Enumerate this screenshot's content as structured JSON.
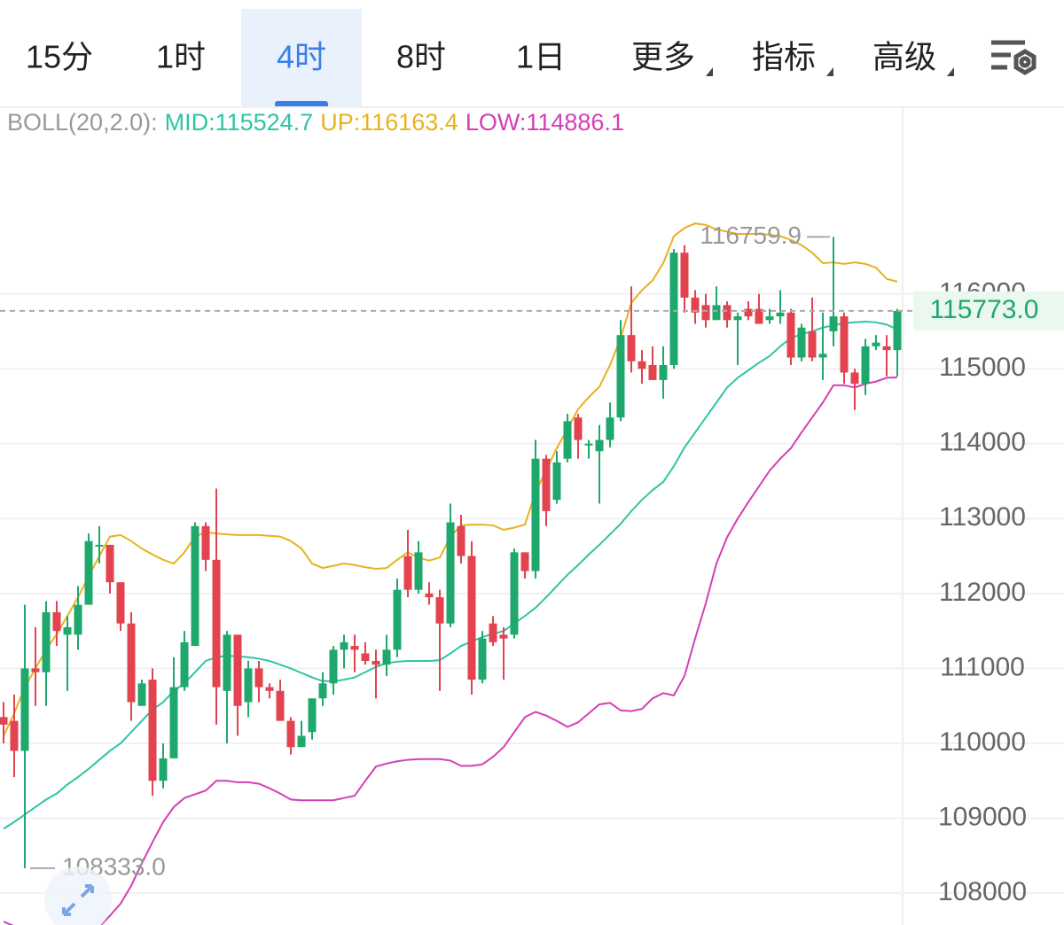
{
  "ui": {
    "tabs": [
      "15分",
      "1时",
      "4时",
      "8时",
      "1日",
      "更多",
      "指标",
      "高级"
    ],
    "active_tab": 2
  },
  "chart_data": {
    "type": "candlestick",
    "indicator_label": "BOLL(20,2.0):",
    "open": [
      110350,
      110300,
      109900,
      111000,
      110950,
      111750,
      111450,
      111450,
      111850,
      112650,
      112650,
      112150,
      111600,
      110500,
      110850,
      109500,
      109800,
      110750,
      111300,
      112900,
      112450,
      110700,
      111450,
      110550,
      111000,
      110750,
      110700,
      110300,
      109950,
      110150,
      110600,
      110800,
      111250,
      111300,
      111200,
      111100,
      111050,
      111250,
      112500,
      112050,
      112000,
      111950,
      111600,
      112900,
      112500,
      110850,
      111600,
      111450,
      111450,
      112550,
      112300,
      113800,
      113250,
      113800,
      114350,
      114000,
      113900,
      114050,
      114350,
      115450,
      115100,
      115050,
      114850,
      115050,
      116550,
      115950,
      115850,
      115650,
      115850,
      115650,
      115800,
      115800,
      115650,
      115700,
      115750,
      115150,
      115500,
      115150,
      115500,
      115700,
      114950,
      114800,
      115300,
      115300,
      115250
    ],
    "high": [
      110550,
      110650,
      111850,
      111550,
      111900,
      111900,
      111700,
      112100,
      112800,
      112900,
      112650,
      112150,
      111750,
      110850,
      111000,
      110000,
      111150,
      111500,
      112950,
      112950,
      113400,
      111500,
      111450,
      111100,
      111100,
      110800,
      110850,
      110350,
      110300,
      110600,
      110950,
      111300,
      111450,
      111450,
      111350,
      111250,
      111450,
      112200,
      112850,
      112700,
      112150,
      112050,
      113200,
      113050,
      112700,
      111500,
      111700,
      111550,
      112600,
      112550,
      114050,
      113850,
      113900,
      114400,
      114400,
      114050,
      114250,
      114550,
      115650,
      116100,
      115250,
      115300,
      115300,
      116600,
      116650,
      116050,
      116000,
      116100,
      115900,
      115750,
      115900,
      116000,
      115800,
      116050,
      115800,
      115600,
      115950,
      115750,
      116759.9,
      115750,
      115000,
      115400,
      115450,
      115450,
      115800
    ],
    "low": [
      110000,
      109550,
      108333,
      110500,
      110500,
      111300,
      110700,
      111250,
      111850,
      112400,
      112000,
      111500,
      110300,
      110500,
      109300,
      109400,
      109800,
      110700,
      111300,
      112300,
      110250,
      110000,
      110100,
      110350,
      110550,
      110600,
      110300,
      109850,
      109950,
      110050,
      110500,
      110650,
      111000,
      110950,
      111050,
      110600,
      110900,
      111150,
      111950,
      112000,
      111850,
      110700,
      111550,
      112400,
      110650,
      110800,
      111300,
      110850,
      111400,
      112200,
      112200,
      112900,
      113200,
      113750,
      113800,
      113800,
      113200,
      113950,
      114300,
      114950,
      114800,
      114850,
      114600,
      115000,
      115750,
      115600,
      115550,
      115650,
      115550,
      115050,
      115650,
      115600,
      115600,
      115600,
      115050,
      115100,
      115100,
      114850,
      115300,
      114800,
      114450,
      114650,
      115250,
      114900,
      114900
    ],
    "close": [
      110250,
      109900,
      111000,
      110950,
      111750,
      111500,
      111550,
      111850,
      112700,
      112650,
      112150,
      111600,
      110550,
      110800,
      109500,
      109800,
      110750,
      111350,
      112900,
      112450,
      110750,
      111450,
      110500,
      111000,
      110750,
      110700,
      110300,
      109950,
      110100,
      110600,
      110800,
      111250,
      111350,
      111250,
      111100,
      111050,
      111250,
      112050,
      112050,
      112550,
      111950,
      111600,
      112950,
      112500,
      110850,
      111400,
      111350,
      111400,
      112550,
      112300,
      113800,
      113100,
      113750,
      114300,
      114050,
      114000,
      114050,
      114350,
      115450,
      115100,
      115000,
      114850,
      115050,
      116550,
      115950,
      115750,
      115650,
      115850,
      115650,
      115700,
      115700,
      115600,
      115700,
      115750,
      115150,
      115550,
      115150,
      115200,
      115700,
      114950,
      114800,
      115300,
      115350,
      115250,
      115773
    ],
    "up_color": "#1fa86c",
    "down_color": "#e2434f",
    "series": [
      {
        "name": "MID",
        "legend": "MID:115524.7",
        "color": "#2fc4a6",
        "values": [
          108860,
          108950,
          109050,
          109150,
          109250,
          109330,
          109450,
          109550,
          109660,
          109780,
          109900,
          110000,
          110150,
          110300,
          110450,
          110550,
          110700,
          110800,
          110950,
          111100,
          111150,
          111170,
          111160,
          111150,
          111130,
          111100,
          111050,
          111000,
          110940,
          110880,
          110830,
          110830,
          110850,
          110880,
          110950,
          111020,
          111070,
          111090,
          111100,
          111100,
          111100,
          111110,
          111200,
          111300,
          111360,
          111420,
          111460,
          111500,
          111600,
          111700,
          111810,
          111950,
          112100,
          112250,
          112380,
          112520,
          112650,
          112790,
          112930,
          113100,
          113250,
          113380,
          113490,
          113700,
          113950,
          114150,
          114350,
          114550,
          114750,
          114880,
          114980,
          115080,
          115170,
          115300,
          115410,
          115460,
          115500,
          115550,
          115580,
          115610,
          115620,
          115630,
          115620,
          115590,
          115524.7
        ]
      },
      {
        "name": "UP",
        "legend": "UP:116163.4",
        "color": "#e8b21e",
        "values": [
          110100,
          110400,
          110750,
          111000,
          111250,
          111460,
          111700,
          111950,
          112230,
          112500,
          112760,
          112780,
          112700,
          112600,
          112520,
          112450,
          112400,
          112550,
          112760,
          112820,
          112800,
          112790,
          112780,
          112780,
          112780,
          112770,
          112760,
          112700,
          112600,
          112400,
          112340,
          112370,
          112400,
          112380,
          112350,
          112330,
          112340,
          112450,
          112550,
          112480,
          112440,
          112480,
          112760,
          112910,
          112920,
          112920,
          112910,
          112850,
          112880,
          112920,
          113350,
          113650,
          113940,
          114200,
          114460,
          114620,
          114760,
          115050,
          115410,
          115880,
          116050,
          116180,
          116410,
          116770,
          116880,
          116940,
          116920,
          116860,
          116830,
          116800,
          116800,
          116800,
          116790,
          116770,
          116720,
          116650,
          116550,
          116410,
          116420,
          116400,
          116420,
          116400,
          116350,
          116200,
          116163.4
        ]
      },
      {
        "name": "LOW",
        "legend": "LOW:114886.1",
        "color": "#d43fb5",
        "values": [
          107620,
          107560,
          107450,
          107350,
          107280,
          107250,
          107260,
          107300,
          107400,
          107550,
          107700,
          107860,
          108100,
          108400,
          108680,
          108950,
          109150,
          109270,
          109320,
          109370,
          109500,
          109500,
          109480,
          109480,
          109460,
          109400,
          109330,
          109250,
          109240,
          109240,
          109240,
          109240,
          109270,
          109300,
          109500,
          109690,
          109730,
          109760,
          109780,
          109790,
          109790,
          109790,
          109770,
          109700,
          109700,
          109720,
          109820,
          109950,
          110150,
          110350,
          110420,
          110370,
          110300,
          110220,
          110280,
          110400,
          110520,
          110540,
          110440,
          110430,
          110460,
          110600,
          110670,
          110640,
          110900,
          111400,
          111870,
          112400,
          112750,
          113000,
          113220,
          113430,
          113640,
          113800,
          113940,
          114150,
          114350,
          114550,
          114780,
          114780,
          114750,
          114800,
          114830,
          114880,
          114886.1
        ]
      }
    ],
    "ylim": [
      107575,
      118480
    ],
    "yticks": [
      108000,
      109000,
      110000,
      111000,
      112000,
      113000,
      114000,
      115000,
      116000
    ],
    "grid": true,
    "last_price": {
      "value": 115773,
      "label": "115773.0"
    },
    "max_label": {
      "value": 116759.9,
      "label": "116759.9"
    },
    "min_label": {
      "value": 108333,
      "label": "108333.0"
    }
  }
}
